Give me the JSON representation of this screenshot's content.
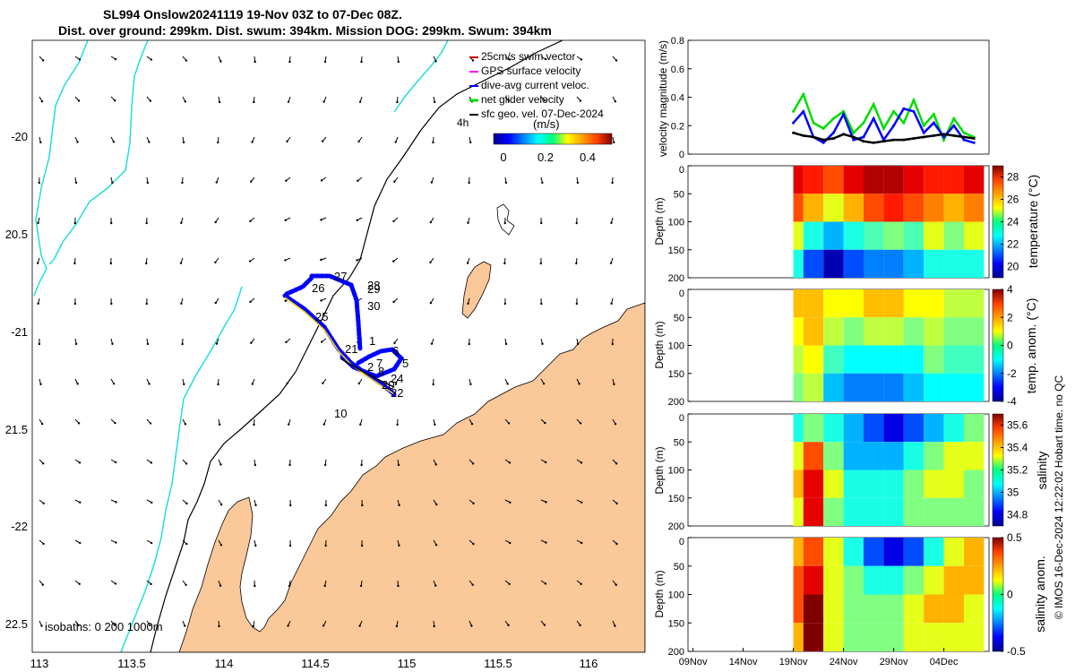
{
  "header": {
    "title_line1": "SL994 Onslow20241119 19-Nov 03Z to 07-Dec 08Z.",
    "title_line2": "Dist. over ground: 299km. Dist. swum: 394km. Mission DOG: 299km. Swum: 394km"
  },
  "map": {
    "legend_items": [
      {
        "label": "25cm/s swim vector",
        "color": "#cc0000"
      },
      {
        "label": "GPS surface velocity",
        "color": "#ff00ff"
      },
      {
        "label": "dive-avg current veloc.",
        "color": "#0000ff"
      },
      {
        "label": "net glider velocity",
        "color": "#00dd00"
      },
      {
        "label": "sfc geo. vel. 07-Dec-2024",
        "color": "#000000"
      }
    ],
    "legend_note": "4h",
    "colorbar_unit": "(m/s)",
    "colorbar_ticks": [
      "0",
      "0.2",
      "0.4"
    ],
    "isobaths_label": "isobaths: 0   200  1000m",
    "lat_ticks": [
      "-20",
      "20.5",
      "-21",
      "21.5",
      "-22",
      "22.5"
    ],
    "lon_ticks": [
      "113",
      "113.5",
      "114",
      "114.5",
      "115",
      "115.5",
      "116"
    ],
    "day_labels": [
      "27",
      "28",
      "29",
      "26",
      "30",
      "25",
      "21",
      "1",
      "6",
      "5",
      "7",
      "2",
      "8",
      "24",
      "20",
      "22",
      "10"
    ]
  },
  "time_axis": {
    "tick_labels": [
      "09Nov",
      "14Nov",
      "19Nov",
      "24Nov",
      "29Nov",
      "04Dec"
    ]
  },
  "panels": {
    "velocity": {
      "ylabel": "velocity magnitude (m/s)",
      "ticks": [
        "0",
        "0.2",
        "0.4",
        "0.6",
        "0.8"
      ]
    },
    "temperature": {
      "ylabel": "Depth (m)",
      "cb_label": "temperature (°C)",
      "cb_ticks": [
        "28",
        "26",
        "24",
        "22",
        "20"
      ]
    },
    "temp_anom": {
      "ylabel": "Depth (m)",
      "cb_label": "temp. anom. (°C)",
      "cb_ticks": [
        "4",
        "2",
        "0",
        "-2",
        "-4"
      ]
    },
    "salinity": {
      "ylabel": "Depth (m)",
      "cb_label": "salinity",
      "cb_ticks": [
        "35.6",
        "35.4",
        "35.2",
        "35",
        "34.8"
      ]
    },
    "sal_anom": {
      "ylabel": "Depth (m)",
      "cb_label": "salinity anom.",
      "cb_ticks": [
        "0.5",
        "0",
        "-0.5"
      ]
    },
    "depth_ticks": [
      "0",
      "50",
      "100",
      "150",
      "200"
    ]
  },
  "footer": {
    "credit": "© IMOS 16-Dec-2024 12:22:02 Hobart time. no QC"
  },
  "chart_data": [
    {
      "type": "line",
      "title": "velocity magnitude",
      "xlabel": "",
      "ylabel": "velocity magnitude (m/s)",
      "ylim": [
        0,
        0.8
      ],
      "x": [
        "19Nov",
        "20Nov",
        "21Nov",
        "22Nov",
        "23Nov",
        "24Nov",
        "25Nov",
        "26Nov",
        "27Nov",
        "28Nov",
        "29Nov",
        "30Nov",
        "01Dec",
        "02Dec",
        "03Dec",
        "04Dec",
        "05Dec",
        "06Dec",
        "07Dec"
      ],
      "series": [
        {
          "name": "net glider velocity",
          "color": "#00dd00",
          "values": [
            0.3,
            0.42,
            0.22,
            0.18,
            0.25,
            0.3,
            0.15,
            0.22,
            0.35,
            0.18,
            0.3,
            0.22,
            0.38,
            0.2,
            0.28,
            0.1,
            0.25,
            0.15,
            0.12
          ]
        },
        {
          "name": "dive-avg current veloc.",
          "color": "#0000ff",
          "values": [
            0.22,
            0.3,
            0.12,
            0.08,
            0.15,
            0.28,
            0.1,
            0.12,
            0.25,
            0.1,
            0.2,
            0.32,
            0.3,
            0.15,
            0.22,
            0.12,
            0.2,
            0.1,
            0.08
          ]
        },
        {
          "name": "sfc geo. vel.",
          "color": "#000000",
          "values": [
            0.15,
            0.13,
            0.12,
            0.1,
            0.11,
            0.14,
            0.12,
            0.09,
            0.08,
            0.09,
            0.1,
            0.1,
            0.11,
            0.12,
            0.13,
            0.14,
            0.13,
            0.12,
            0.11
          ]
        }
      ]
    },
    {
      "type": "heatmap",
      "title": "temperature (°C)",
      "xlabel": "",
      "ylabel": "Depth (m)",
      "ylim": [
        200,
        0
      ],
      "clim": [
        19,
        29
      ],
      "x": [
        "19Nov",
        "21Nov",
        "23Nov",
        "25Nov",
        "27Nov",
        "29Nov",
        "01Dec",
        "03Dec",
        "05Dec",
        "07Dec"
      ],
      "depths": [
        0,
        50,
        100,
        150
      ],
      "values": [
        [
          28,
          27.5,
          27,
          28,
          28.5,
          28.5,
          28,
          27.5,
          27.5,
          28
        ],
        [
          27,
          26,
          25,
          26,
          27,
          27.5,
          27,
          26.5,
          26,
          26.5
        ],
        [
          25,
          23,
          22,
          23,
          23.5,
          24,
          23.5,
          25,
          24,
          25
        ],
        [
          23,
          21,
          19.5,
          21,
          21.5,
          21.5,
          22,
          23,
          23,
          23
        ]
      ]
    },
    {
      "type": "heatmap",
      "title": "temp. anom. (°C)",
      "xlabel": "",
      "ylabel": "Depth (m)",
      "ylim": [
        200,
        0
      ],
      "clim": [
        -4,
        4
      ],
      "x": [
        "19Nov",
        "21Nov",
        "23Nov",
        "25Nov",
        "27Nov",
        "29Nov",
        "01Dec",
        "03Dec",
        "05Dec",
        "07Dec"
      ],
      "depths": [
        0,
        50,
        100,
        150
      ],
      "values": [
        [
          1.5,
          1.5,
          1,
          1,
          1.5,
          1.5,
          1,
          1,
          0.5,
          0.5
        ],
        [
          1,
          1.5,
          0.5,
          0,
          0.5,
          0.5,
          0,
          0.5,
          0,
          0
        ],
        [
          0.5,
          1,
          -0.5,
          -1,
          -1,
          -1,
          -1,
          0,
          -0.5,
          -0.5
        ],
        [
          0,
          0.5,
          -1.5,
          -2,
          -2,
          -2,
          -1.5,
          -1,
          -1,
          -1
        ]
      ]
    },
    {
      "type": "heatmap",
      "title": "salinity",
      "xlabel": "",
      "ylabel": "Depth (m)",
      "ylim": [
        200,
        0
      ],
      "clim": [
        34.7,
        35.7
      ],
      "x": [
        "19Nov",
        "21Nov",
        "23Nov",
        "25Nov",
        "27Nov",
        "29Nov",
        "01Dec",
        "03Dec",
        "05Dec",
        "07Dec"
      ],
      "depths": [
        0,
        50,
        100,
        150
      ],
      "values": [
        [
          35.1,
          35.2,
          35.1,
          35.0,
          34.9,
          34.8,
          34.9,
          35.0,
          35.1,
          35.2
        ],
        [
          35.3,
          35.5,
          35.2,
          35.0,
          35.0,
          35.0,
          35.1,
          35.2,
          35.3,
          35.3
        ],
        [
          35.4,
          35.6,
          35.3,
          35.1,
          35.1,
          35.1,
          35.2,
          35.3,
          35.3,
          35.2
        ],
        [
          35.3,
          35.6,
          35.2,
          35.1,
          35.1,
          35.1,
          35.2,
          35.2,
          35.2,
          35.2
        ]
      ]
    },
    {
      "type": "heatmap",
      "title": "salinity anom.",
      "xlabel": "",
      "ylabel": "Depth (m)",
      "ylim": [
        200,
        0
      ],
      "clim": [
        -0.5,
        0.5
      ],
      "x": [
        "19Nov",
        "21Nov",
        "23Nov",
        "25Nov",
        "27Nov",
        "29Nov",
        "01Dec",
        "03Dec",
        "05Dec",
        "07Dec"
      ],
      "depths": [
        0,
        50,
        100,
        150
      ],
      "values": [
        [
          0.2,
          0.3,
          0.1,
          -0.1,
          -0.3,
          -0.4,
          -0.3,
          -0.1,
          0.1,
          0.2
        ],
        [
          0.3,
          0.4,
          0.1,
          0,
          -0.1,
          -0.1,
          0,
          0.1,
          0.2,
          0.2
        ],
        [
          0.3,
          0.5,
          0.1,
          0,
          0,
          0,
          0.1,
          0.2,
          0.2,
          0.1
        ],
        [
          0.2,
          0.5,
          0.1,
          0,
          0,
          0,
          0.1,
          0.1,
          0.1,
          0.1
        ]
      ]
    }
  ]
}
